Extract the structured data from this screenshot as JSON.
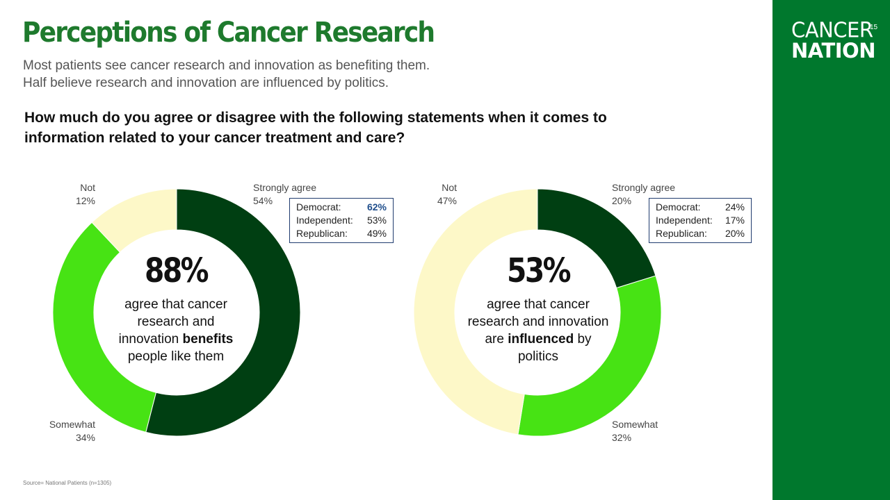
{
  "header": {
    "title": "Perceptions of Cancer Research",
    "subtitle_line1": "Most patients see cancer research and innovation as benefiting them.",
    "subtitle_line2": "Half believe research and innovation are influenced by politics.",
    "question": "How much do you agree or disagree with the following statements when it comes to information related to your cancer treatment and care?"
  },
  "brand": {
    "logo_line1": "CANCER",
    "logo_line2": "NATION",
    "page_number": "15",
    "sidebar_color": "#00782d"
  },
  "source": "Source= National Patients (n=1305)",
  "colors": {
    "strongly_agree": "#003f12",
    "somewhat": "#47e314",
    "not": "#fdf8c8",
    "title": "#1e7a2d",
    "highlight": "#1f4e8c"
  },
  "chart_data": [
    {
      "type": "pie",
      "categories": [
        "Strongly agree",
        "Somewhat",
        "Not"
      ],
      "values": [
        54,
        34,
        12
      ],
      "labels": [
        {
          "name": "Strongly agree",
          "value": "54%"
        },
        {
          "name": "Somewhat",
          "value": "34%"
        },
        {
          "name": "Not",
          "value": "12%"
        }
      ],
      "center": {
        "value": "88%",
        "line1": "agree that cancer",
        "line2": "research and",
        "line3_pre": "innovation ",
        "line3_bold": "benefits",
        "line4": "people like them"
      },
      "party_breakdown": [
        {
          "label": "Democrat:",
          "value": "62%"
        },
        {
          "label": "Independent:",
          "value": "53%"
        },
        {
          "label": "Republican:",
          "value": "49%"
        }
      ]
    },
    {
      "type": "pie",
      "categories": [
        "Strongly agree",
        "Somewhat",
        "Not"
      ],
      "values": [
        20,
        32,
        47
      ],
      "labels": [
        {
          "name": "Strongly agree",
          "value": "20%"
        },
        {
          "name": "Somewhat",
          "value": "32%"
        },
        {
          "name": "Not",
          "value": "47%"
        }
      ],
      "center": {
        "value": "53%",
        "line1": "agree that cancer",
        "line2": "research and innovation",
        "line3_pre": "are ",
        "line3_bold": "influenced",
        "line3_post": " by",
        "line4": "politics"
      },
      "party_breakdown": [
        {
          "label": "Democrat:",
          "value": "24%"
        },
        {
          "label": "Independent:",
          "value": "17%"
        },
        {
          "label": "Republican:",
          "value": "20%"
        }
      ]
    }
  ]
}
